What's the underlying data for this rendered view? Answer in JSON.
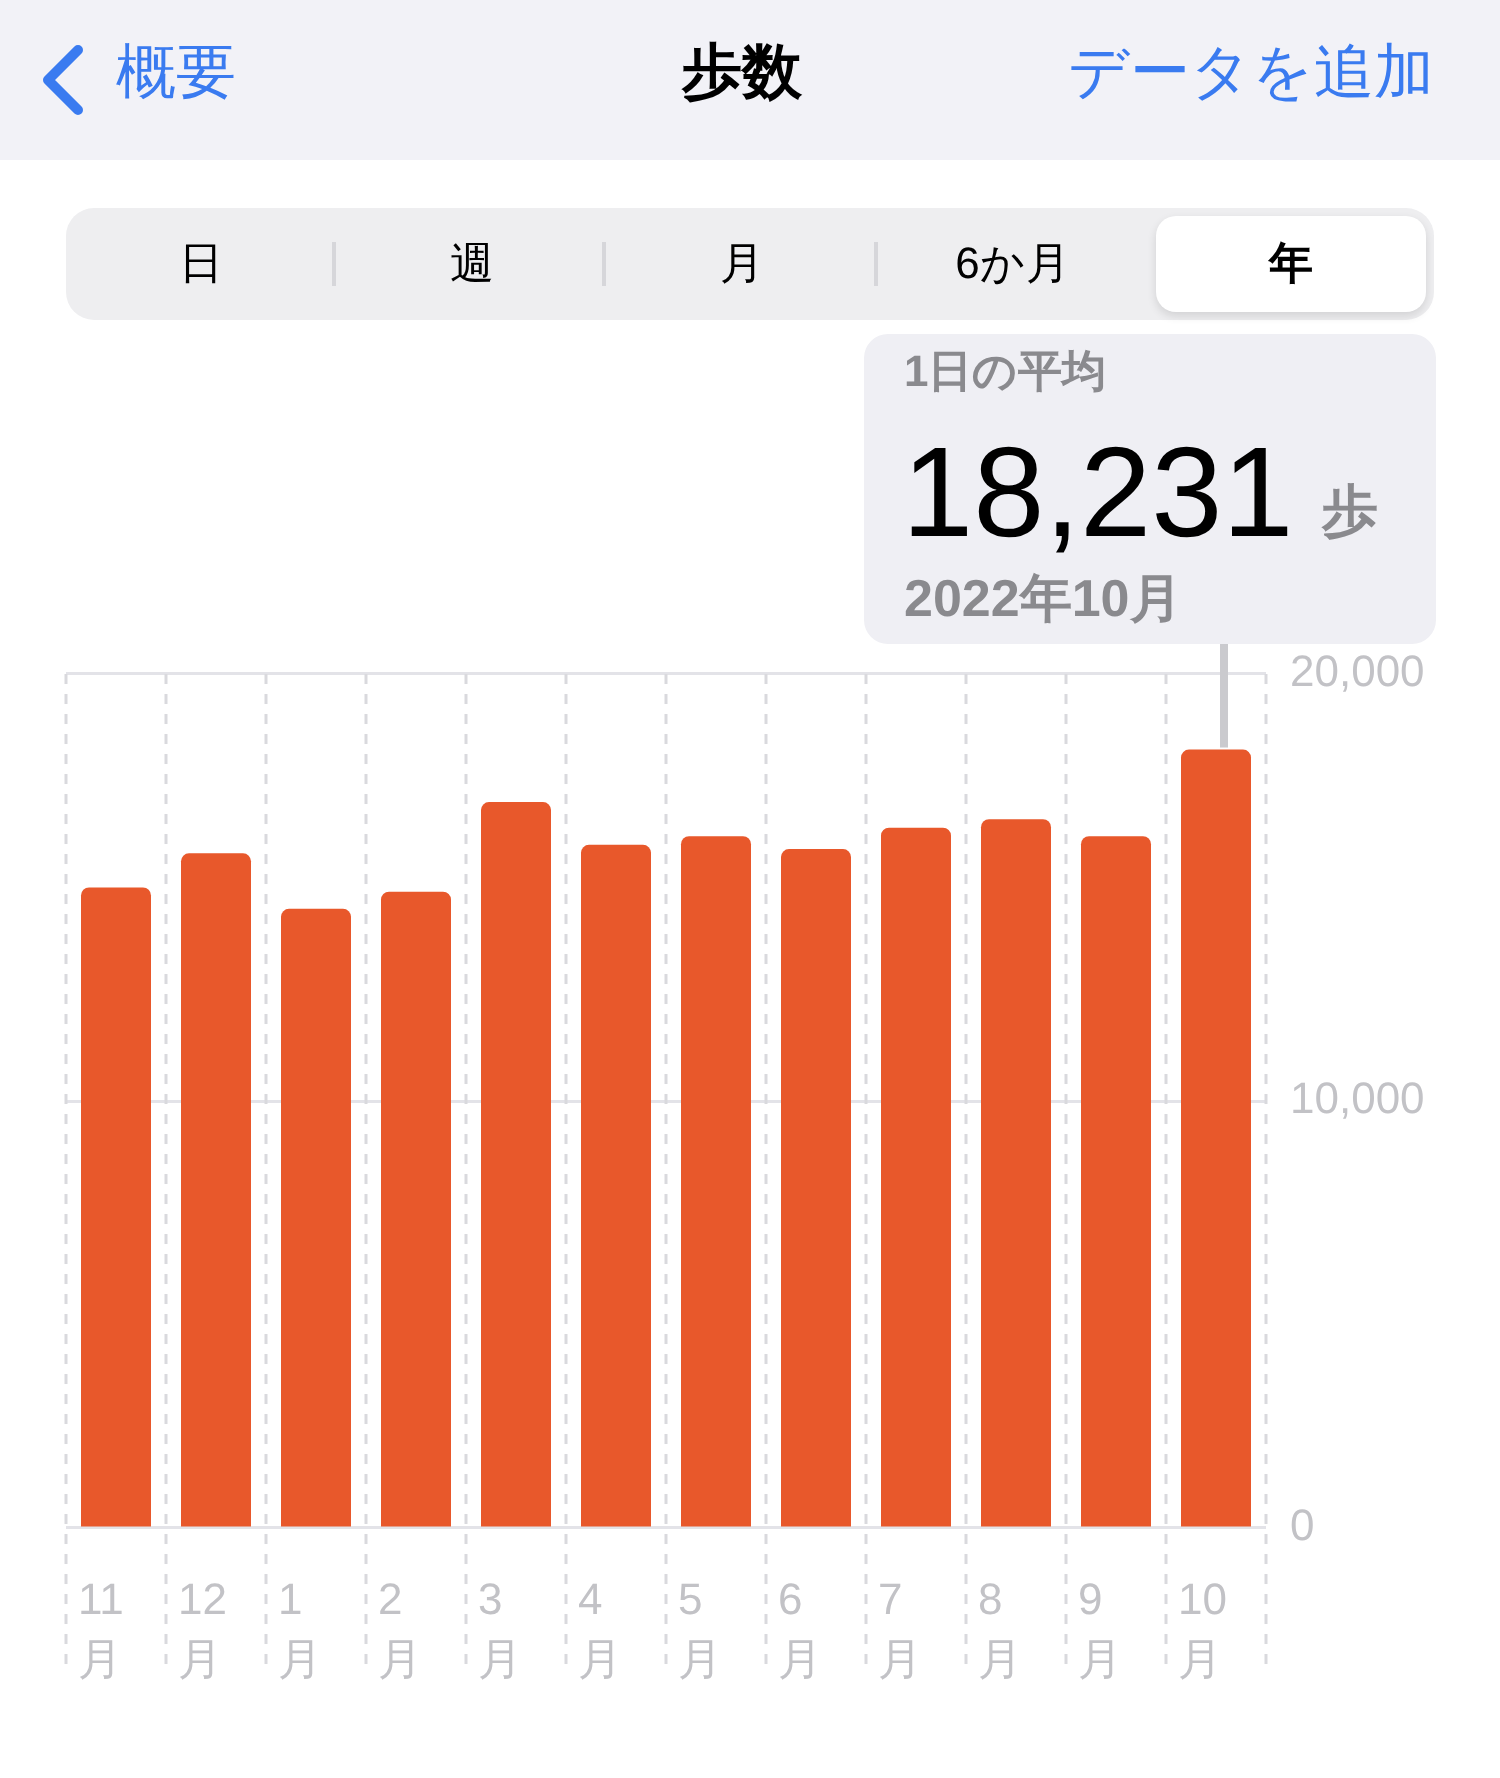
{
  "chart_data": {
    "type": "bar",
    "title": "歩数",
    "annotations": [
      "概要",
      "データを追加",
      "日",
      "週",
      "月",
      "6か月",
      "年",
      "1日の平均",
      "歩",
      {
        "text": "2022年10月",
        "x": "10月",
        "y": 18231
      }
    ],
    "categories": [
      "11月",
      "12月",
      "1月",
      "2月",
      "3月",
      "4月",
      "5月",
      "6月",
      "7月",
      "8月",
      "9月",
      "10月"
    ],
    "values": [
      15000,
      15800,
      14500,
      14900,
      17000,
      16000,
      16200,
      15900,
      16400,
      16600,
      16200,
      18231
    ],
    "value_labels": [
      null,
      null,
      null,
      null,
      null,
      null,
      null,
      null,
      null,
      null,
      null,
      "18,231"
    ],
    "color": "#e8582b",
    "ylim": [
      0,
      20000
    ],
    "yticks": [
      0,
      {
        "value": 10000,
        "label": "10,000"
      },
      {
        "value": 20000,
        "label": "20,000"
      }
    ],
    "grid": true
  }
}
